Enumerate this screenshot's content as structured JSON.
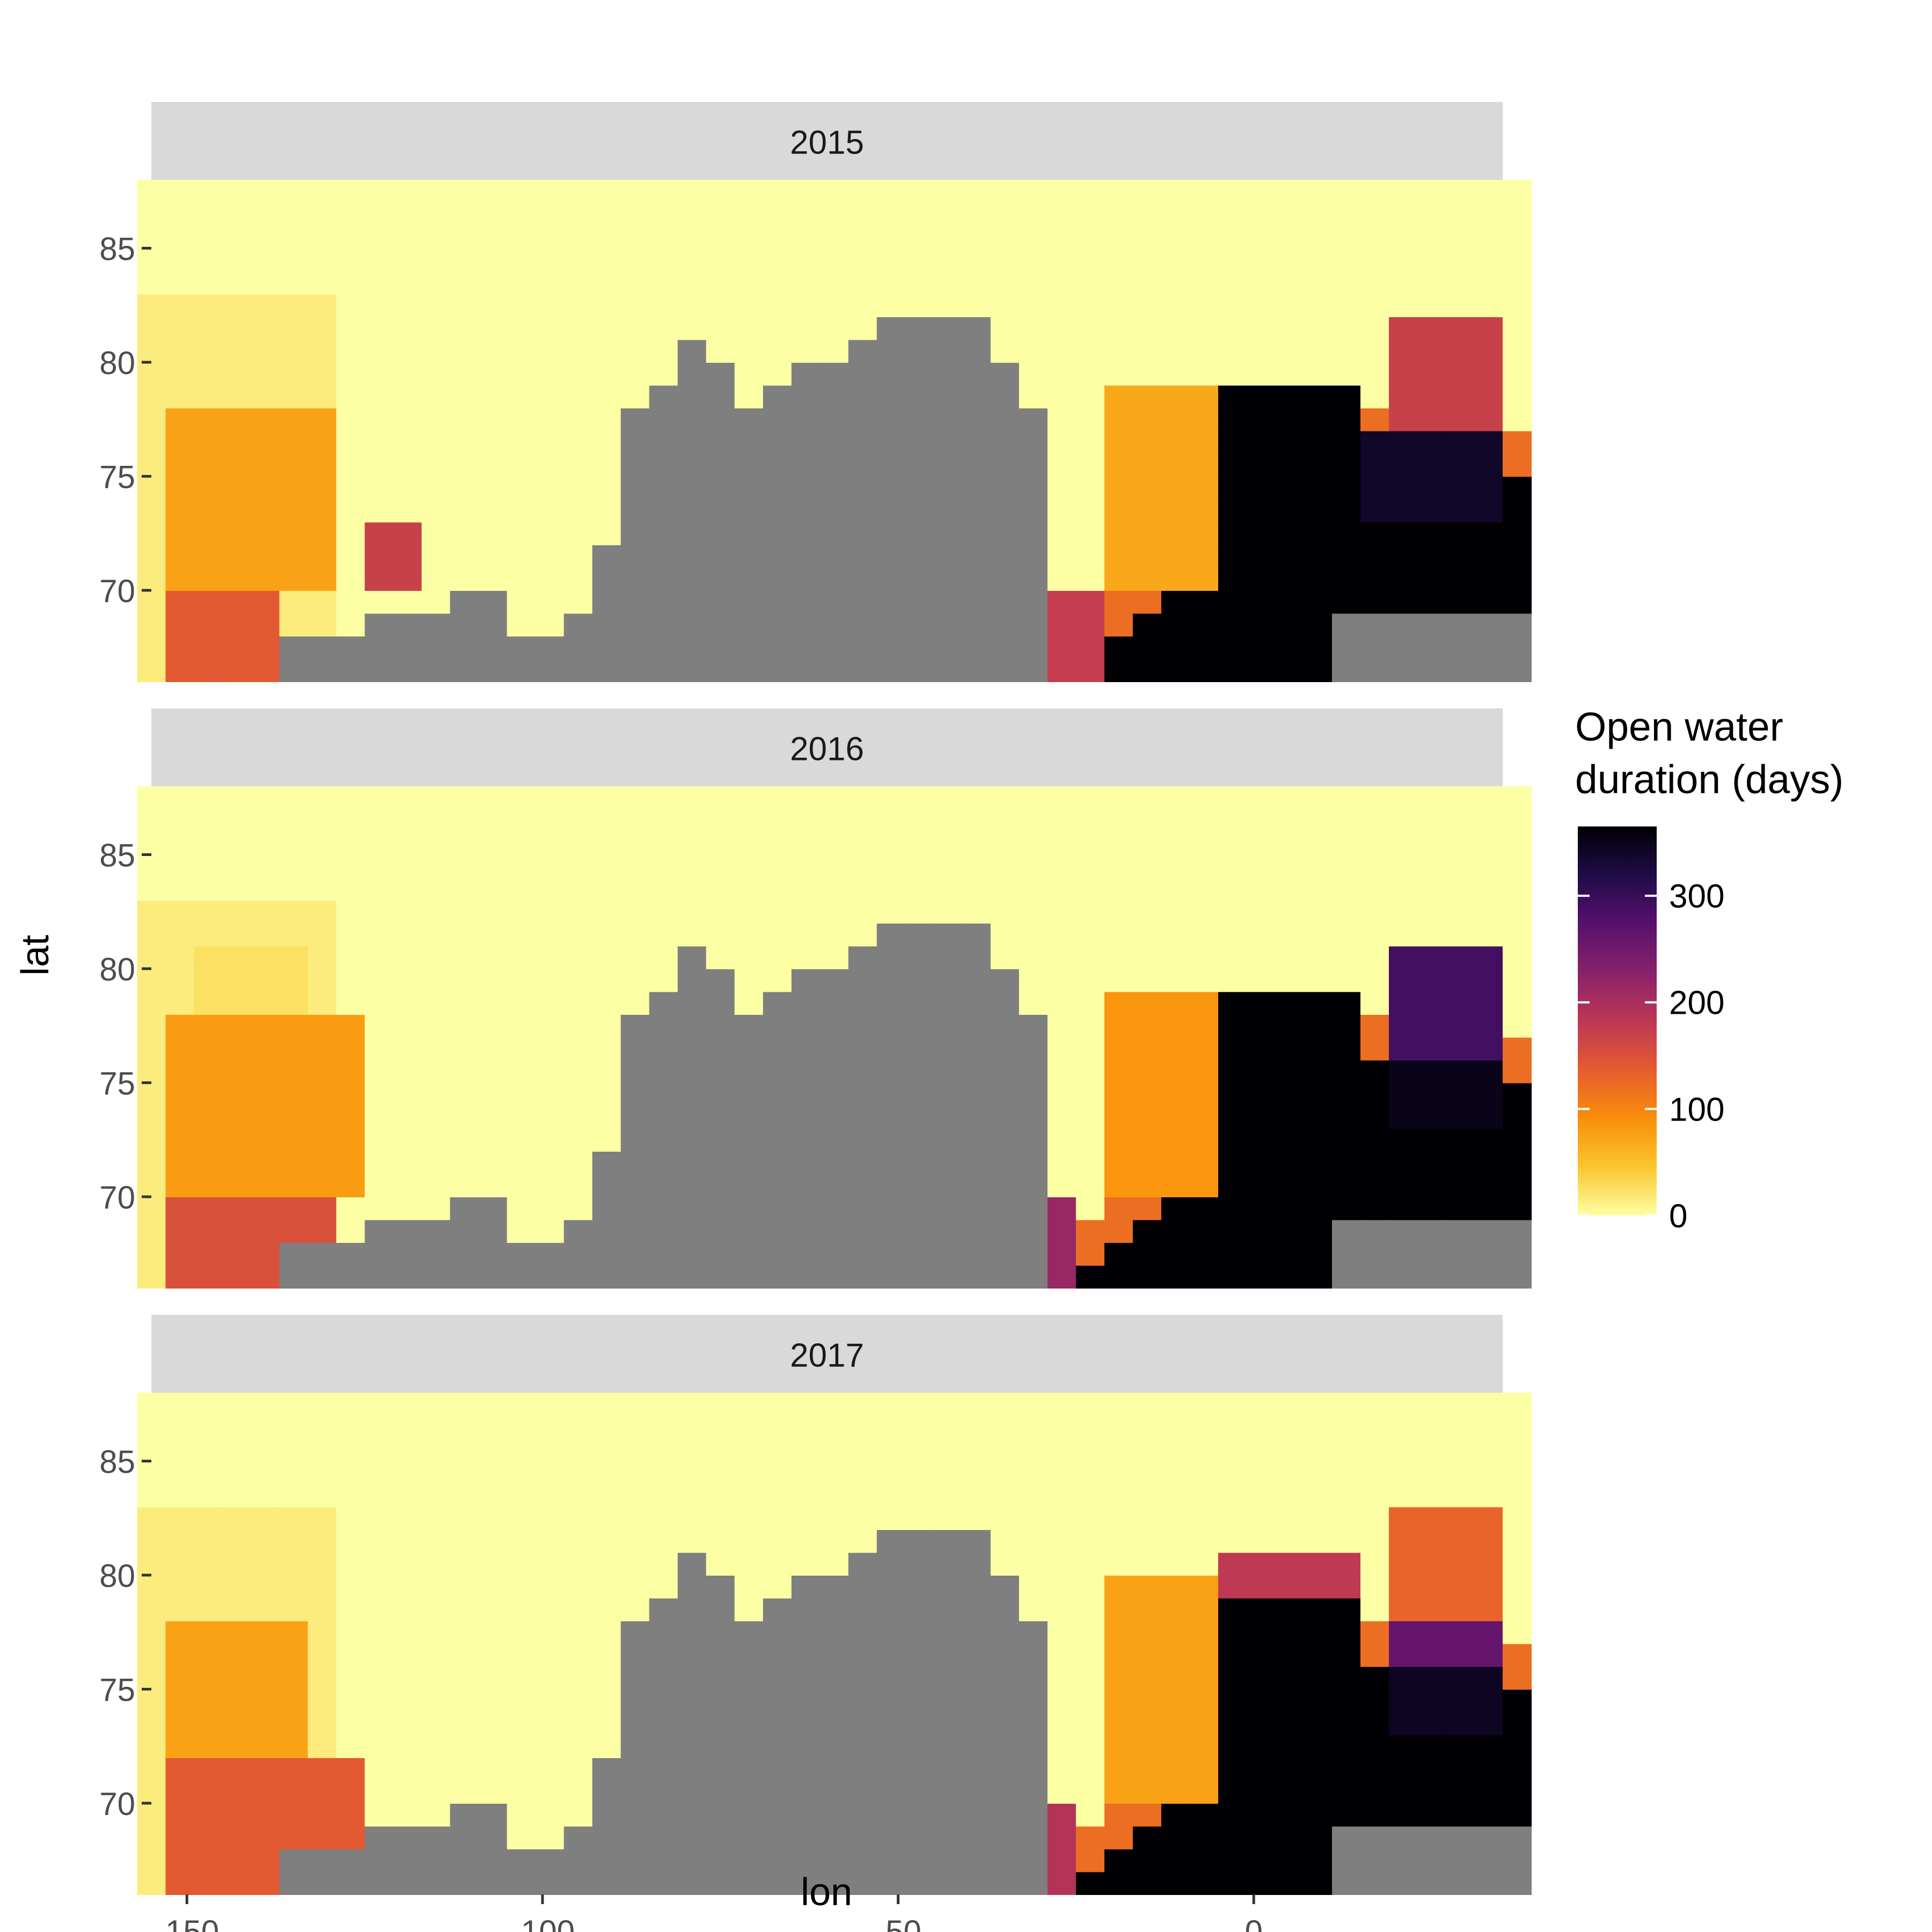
{
  "chart_data": {
    "type": "heatmap",
    "panels": [
      {
        "year": "2015"
      },
      {
        "year": "2016"
      },
      {
        "year": "2017"
      }
    ],
    "xlabel": "lon",
    "ylabel": "lat",
    "xlim": [
      -155,
      35
    ],
    "ylim": [
      66,
      88
    ],
    "x_ticks": [
      -150,
      -100,
      -50,
      0
    ],
    "x_tick_labels": [
      "-150",
      "-100",
      "-50",
      "0"
    ],
    "y_ticks": [
      70,
      75,
      80,
      85
    ],
    "y_tick_labels": [
      "70",
      "75",
      "80",
      "85"
    ],
    "grid": false,
    "land_color": "#7f7f7f",
    "strip_color": "#d9d9d9",
    "cell_size_deg": [
      4,
      1
    ],
    "legend": {
      "title_line1": "Open water",
      "title_line2": "duration (days)",
      "placement": "right",
      "min": 0,
      "max": 365,
      "ticks": [
        0,
        100,
        200,
        300
      ],
      "tick_labels": [
        "0",
        "100",
        "200",
        "300"
      ],
      "colormap": "inferno",
      "colors": [
        "#fcffa4",
        "#fac62d",
        "#f98e09",
        "#e55c30",
        "#bc3754",
        "#89226a",
        "#57106e",
        "#1f0c48",
        "#000004"
      ]
    },
    "land": {
      "lon": [
        -134,
        -130,
        -126,
        -122,
        -118,
        -114,
        -110,
        -106,
        -102,
        -98,
        -94,
        -90,
        -86,
        -82,
        -78,
        -74,
        -70,
        -66,
        -62,
        -58,
        -54,
        -50,
        -46,
        -42,
        -38,
        -34,
        -30
      ],
      "lat_tops": [
        68.5,
        68.5,
        68.5,
        69.5,
        69.5,
        69.5,
        70.5,
        70.5,
        68.5,
        68.5,
        69.5,
        72.5,
        78.5,
        79.5,
        81.5,
        80.5,
        78.5,
        79.5,
        80.5,
        80.5,
        81.5,
        82.5,
        82.5,
        82.5,
        82.5,
        80.5,
        78.5
      ]
    },
    "ice_edge": {
      "lon": [
        -30,
        -26,
        -22,
        -18,
        -14,
        -10,
        -6,
        -2,
        2,
        6,
        10,
        14,
        18,
        22,
        26,
        30,
        34
      ],
      "lat": [
        67.5,
        68.5,
        69.5,
        70.5,
        71.5,
        73.5,
        75.0,
        76.5,
        78.0,
        79.0,
        79.5,
        78.5,
        78.0,
        77.5,
        77.0,
        77.0,
        77.0
      ]
    },
    "series": [
      {
        "regions": [
          {
            "lon": [
              -154,
              -138
            ],
            "lat": [
              66,
              70
            ],
            "value": 140
          },
          {
            "lon": [
              -154,
              -130
            ],
            "lat": [
              70,
              78
            ],
            "value": 75
          },
          {
            "lon": [
              -126,
              -118
            ],
            "lat": [
              70,
              73
            ],
            "value": 170
          },
          {
            "lon": [
              -82,
              -62
            ],
            "lat": [
              72,
              78
            ],
            "value": 130
          },
          {
            "lon": [
              -74,
              -58
            ],
            "lat": [
              66,
              72
            ],
            "value": 95
          },
          {
            "lon": [
              -34,
              -22
            ],
            "lat": [
              66,
              70
            ],
            "value": 175
          },
          {
            "lon": [
              -22,
              -6
            ],
            "lat": [
              70,
              79
            ],
            "value": 70
          },
          {
            "lon": [
              -6,
              14
            ],
            "lat": [
              66,
              79
            ],
            "value": 365
          },
          {
            "lon": [
              14,
              34
            ],
            "lat": [
              73,
              77
            ],
            "value": 340
          },
          {
            "lon": [
              18,
              34
            ],
            "lat": [
              77,
              82
            ],
            "value": 170
          }
        ]
      },
      {
        "regions": [
          {
            "lon": [
              -154,
              -130
            ],
            "lat": [
              66,
              70
            ],
            "value": 150
          },
          {
            "lon": [
              -154,
              -126
            ],
            "lat": [
              70,
              78
            ],
            "value": 80
          },
          {
            "lon": [
              -150,
              -134
            ],
            "lat": [
              78,
              81
            ],
            "value": 25
          },
          {
            "lon": [
              -82,
              -62
            ],
            "lat": [
              72,
              78
            ],
            "value": 145
          },
          {
            "lon": [
              -62,
              -54
            ],
            "lat": [
              66,
              72
            ],
            "value": 240
          },
          {
            "lon": [
              -38,
              -26
            ],
            "lat": [
              66,
              70
            ],
            "value": 215
          },
          {
            "lon": [
              -22,
              -6
            ],
            "lat": [
              70,
              79
            ],
            "value": 85
          },
          {
            "lon": [
              -6,
              14
            ],
            "lat": [
              66,
              79
            ],
            "value": 365
          },
          {
            "lon": [
              18,
              34
            ],
            "lat": [
              76,
              81
            ],
            "value": 290
          },
          {
            "lon": [
              18,
              34
            ],
            "lat": [
              73,
              76
            ],
            "value": 350
          }
        ]
      },
      {
        "regions": [
          {
            "lon": [
              -154,
              -126
            ],
            "lat": [
              66,
              72
            ],
            "value": 140
          },
          {
            "lon": [
              -154,
              -134
            ],
            "lat": [
              72,
              78
            ],
            "value": 75
          },
          {
            "lon": [
              -82,
              -62
            ],
            "lat": [
              72,
              78
            ],
            "value": 135
          },
          {
            "lon": [
              -74,
              -58
            ],
            "lat": [
              66,
              72
            ],
            "value": 90
          },
          {
            "lon": [
              -38,
              -26
            ],
            "lat": [
              66,
              70
            ],
            "value": 190
          },
          {
            "lon": [
              -22,
              -6
            ],
            "lat": [
              70,
              80
            ],
            "value": 75
          },
          {
            "lon": [
              -6,
              14
            ],
            "lat": [
              66,
              79
            ],
            "value": 365
          },
          {
            "lon": [
              -6,
              14
            ],
            "lat": [
              79,
              81
            ],
            "value": 180
          },
          {
            "lon": [
              18,
              34
            ],
            "lat": [
              76,
              78
            ],
            "value": 260
          },
          {
            "lon": [
              18,
              34
            ],
            "lat": [
              78,
              83
            ],
            "value": 130
          },
          {
            "lon": [
              18,
              34
            ],
            "lat": [
              73,
              76
            ],
            "value": 345
          }
        ]
      }
    ]
  }
}
